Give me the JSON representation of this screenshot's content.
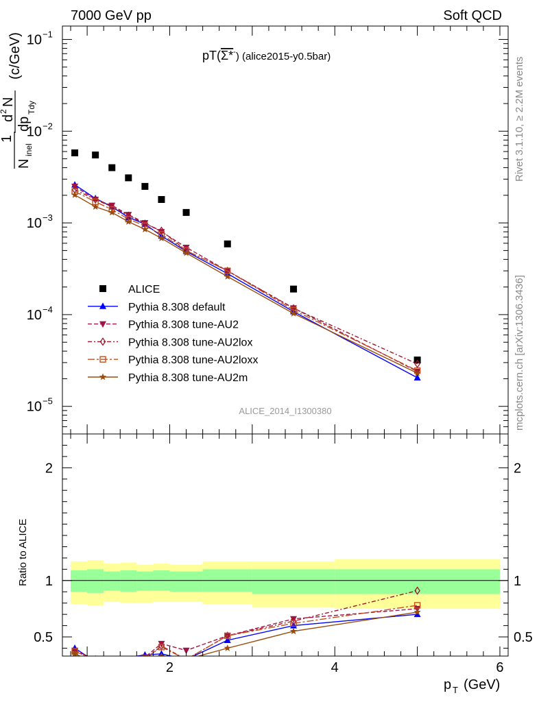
{
  "header": {
    "left": "7000 GeV pp",
    "right": "Soft QCD"
  },
  "side_labels": {
    "rivet": "Rivet 3.1.10, ≥ 2.2M events",
    "mcplots": "mcplots.cern.ch [arXiv:1306.3436]"
  },
  "plot_title": {
    "prefix": "pT(",
    "particle": "Σ*",
    "sup": "-",
    "suffix": ") (alice2015-y0.5bar)"
  },
  "analysis_label": "ALICE_2014_I1300380",
  "chart_data": [
    {
      "type": "scatter",
      "panel": "main",
      "yscale": "log",
      "ylim": [
        5e-06,
        0.14
      ],
      "xlim": [
        0.7,
        6.1
      ],
      "ylabel": "1/N_inel d²N/dp_T dy (c/GeV)",
      "yticks": [
        {
          "v": 1e-05,
          "label": "10",
          "exp": "−5"
        },
        {
          "v": 0.0001,
          "label": "10",
          "exp": "−4"
        },
        {
          "v": 0.001,
          "label": "10",
          "exp": "−3"
        },
        {
          "v": 0.01,
          "label": "10",
          "exp": "−2"
        },
        {
          "v": 0.1,
          "label": "10",
          "exp": "−1"
        }
      ],
      "series": [
        {
          "name": "ALICE",
          "color": "#000000",
          "marker": "square",
          "line": "none",
          "x": [
            0.85,
            1.1,
            1.3,
            1.5,
            1.7,
            1.9,
            2.2,
            2.7,
            3.5,
            5.0
          ],
          "y": [
            0.0058,
            0.0055,
            0.004,
            0.0031,
            0.0025,
            0.0018,
            0.0013,
            0.00059,
            0.00019,
            3.2e-05
          ]
        },
        {
          "name": "Pythia 8.308 default",
          "color": "#0000ff",
          "marker": "triangle-up",
          "line": "solid",
          "x": [
            0.85,
            1.1,
            1.3,
            1.5,
            1.7,
            1.9,
            2.2,
            2.7,
            3.5,
            5.0
          ],
          "y": [
            0.0026,
            0.00185,
            0.0015,
            0.00115,
            0.00097,
            0.00072,
            0.00049,
            0.00028,
            0.000108,
            2.05e-05
          ]
        },
        {
          "name": "Pythia 8.308 tune-AU2",
          "color": "#a0144a",
          "marker": "triangle-down",
          "line": "dashed",
          "x": [
            0.85,
            1.1,
            1.3,
            1.5,
            1.7,
            1.9,
            2.2,
            2.7,
            3.5,
            5.0
          ],
          "y": [
            0.0025,
            0.0018,
            0.00155,
            0.00123,
            0.001,
            0.0008,
            0.00054,
            0.0003,
            0.000118,
            2.4e-05
          ]
        },
        {
          "name": "Pythia 8.308 tune-AU2lox",
          "color": "#a0142a",
          "marker": "diamond-open",
          "line": "dashdot",
          "x": [
            0.85,
            1.1,
            1.3,
            1.5,
            1.7,
            1.9,
            2.2,
            2.7,
            3.5,
            5.0
          ],
          "y": [
            0.0023,
            0.0018,
            0.0015,
            0.0012,
            0.00098,
            0.00082,
            0.0005,
            0.0003,
            0.000117,
            2.9e-05
          ]
        },
        {
          "name": "Pythia 8.308 tune-AU2loxx",
          "color": "#c0501e",
          "marker": "square-open",
          "line": "longdashdot",
          "x": [
            0.85,
            1.1,
            1.3,
            1.5,
            1.7,
            1.9,
            2.2,
            2.7,
            3.5,
            5.0
          ],
          "y": [
            0.0022,
            0.0017,
            0.0014,
            0.0011,
            0.00093,
            0.00075,
            0.0005,
            0.0003,
            0.000112,
            2.45e-05
          ]
        },
        {
          "name": "Pythia 8.308 tune-AU2m",
          "color": "#9a4a0a",
          "marker": "star",
          "line": "solid",
          "x": [
            0.85,
            1.1,
            1.3,
            1.5,
            1.7,
            1.9,
            2.2,
            2.7,
            3.5,
            5.0
          ],
          "y": [
            0.00202,
            0.0015,
            0.0013,
            0.00103,
            0.00085,
            0.00068,
            0.00047,
            0.00026,
            0.000103,
            2.3e-05
          ]
        }
      ]
    },
    {
      "type": "line",
      "panel": "ratio",
      "ylim": [
        0.33,
        2.3
      ],
      "xlim": [
        0.7,
        6.1
      ],
      "ylabel": "Ratio to ALICE",
      "xlabel": "p_T (GeV)",
      "xticks": [
        2,
        4,
        6
      ],
      "yticks": [
        0.5,
        1,
        2
      ],
      "bands": {
        "x_edges": [
          0.8,
          1.0,
          1.2,
          1.4,
          1.6,
          1.8,
          2.0,
          2.4,
          3.0,
          4.0,
          6.0
        ],
        "stat_syst_lo": [
          0.79,
          0.78,
          0.81,
          0.8,
          0.8,
          0.81,
          0.81,
          0.79,
          0.76,
          0.75
        ],
        "stat_syst_hi": [
          1.17,
          1.18,
          1.15,
          1.16,
          1.14,
          1.15,
          1.14,
          1.17,
          1.17,
          1.19
        ],
        "stat_lo": [
          0.9,
          0.89,
          0.91,
          0.9,
          0.91,
          0.91,
          0.9,
          0.9,
          0.88,
          0.88
        ],
        "stat_hi": [
          1.09,
          1.1,
          1.08,
          1.09,
          1.08,
          1.09,
          1.08,
          1.1,
          1.1,
          1.1
        ],
        "outer_color": "#ffff99",
        "inner_color": "#99ff99"
      },
      "series": [
        {
          "name": "Pythia 8.308 default",
          "color": "#0000ff",
          "marker": "triangle-up",
          "line": "solid",
          "x": [
            0.85,
            1.1,
            1.7,
            1.9,
            2.2,
            2.7,
            3.5,
            5.0
          ],
          "y": [
            0.4,
            0.28,
            0.34,
            0.35,
            0.3,
            0.47,
            0.6,
            0.7
          ]
        },
        {
          "name": "Pythia 8.308 tune-AU2",
          "color": "#a0144a",
          "marker": "triangle-down",
          "line": "dashed",
          "x": [
            0.85,
            1.1,
            1.7,
            1.9,
            2.2,
            2.7,
            3.5,
            5.0
          ],
          "y": [
            0.38,
            0.3,
            0.32,
            0.44,
            0.38,
            0.51,
            0.66,
            0.75
          ]
        },
        {
          "name": "Pythia 8.308 tune-AU2lox",
          "color": "#a0142a",
          "marker": "diamond-open",
          "line": "dashdot",
          "x": [
            0.85,
            1.1,
            1.7,
            1.9,
            2.2,
            2.7,
            3.5,
            5.0
          ],
          "y": [
            0.37,
            0.3,
            0.3,
            0.42,
            0.3,
            0.51,
            0.64,
            0.91
          ]
        },
        {
          "name": "Pythia 8.308 tune-AU2loxx",
          "color": "#c0501e",
          "marker": "square-open",
          "line": "longdashdot",
          "x": [
            0.85,
            1.1,
            1.7,
            1.9,
            2.2,
            2.7,
            3.5,
            5.0
          ],
          "y": [
            0.37,
            0.3,
            0.31,
            0.41,
            0.3,
            0.51,
            0.62,
            0.78
          ]
        },
        {
          "name": "Pythia 8.308 tune-AU2m",
          "color": "#9a4a0a",
          "marker": "star",
          "line": "solid",
          "x": [
            0.85,
            1.1,
            1.7,
            1.9,
            2.2,
            2.7,
            3.5,
            5.0
          ],
          "y": [
            0.35,
            0.27,
            0.3,
            0.33,
            0.3,
            0.4,
            0.55,
            0.72
          ]
        }
      ]
    }
  ]
}
